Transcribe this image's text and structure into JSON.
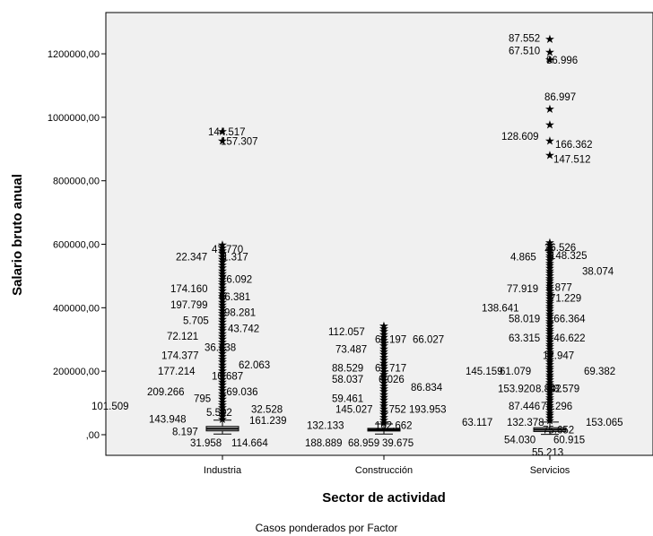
{
  "chart_data": {
    "type": "boxplot",
    "xlabel": "Sector de actividad",
    "ylabel": "Salario bruto anual",
    "footnote": "Casos ponderados por Factor",
    "y_ticks": [
      ",00",
      "200000,00",
      "400000,00",
      "600000,00",
      "800000,00",
      "1000000,00",
      "1200000,00"
    ],
    "y_tick_values": [
      0,
      200000,
      400000,
      600000,
      800000,
      1000000,
      1200000
    ],
    "ylim": [
      -65000,
      1330000
    ],
    "categories": [
      "Industria",
      "Construcción",
      "Servicios"
    ],
    "boxes": [
      {
        "q1": 12000,
        "median": 18500,
        "q3": 26000,
        "whisker_low": 2000,
        "whisker_high": 46000
      },
      {
        "q1": 12000,
        "median": 15500,
        "q3": 20000,
        "whisker_low": 2000,
        "whisker_high": 34000
      },
      {
        "q1": 10000,
        "median": 16000,
        "q3": 22000,
        "whisker_low": 1000,
        "whisker_high": 40000
      }
    ],
    "outlier_labels": [
      {
        "category": "Industria",
        "label": "144.517",
        "y": 955000
      },
      {
        "category": "Industria",
        "label": "157.307",
        "y": 925000
      },
      {
        "category": "Industria",
        "label": "47.770",
        "y": 585000
      },
      {
        "category": "Industria",
        "label": "22.347",
        "y": 560000
      },
      {
        "category": "Industria",
        "label": "1.317",
        "y": 560000
      },
      {
        "category": "Industria",
        "label": "76.092",
        "y": 490000
      },
      {
        "category": "Industria",
        "label": "174.160",
        "y": 460000
      },
      {
        "category": "Industria",
        "label": "66.381",
        "y": 435000
      },
      {
        "category": "Industria",
        "label": "197.799",
        "y": 410000
      },
      {
        "category": "Industria",
        "label": "98.281",
        "y": 385000
      },
      {
        "category": "Industria",
        "label": "5.705",
        "y": 360000
      },
      {
        "category": "Industria",
        "label": "43.742",
        "y": 335000
      },
      {
        "category": "Industria",
        "label": "72.121",
        "y": 310000
      },
      {
        "category": "Industria",
        "label": "36.638",
        "y": 275000
      },
      {
        "category": "Industria",
        "label": "174.377",
        "y": 250000
      },
      {
        "category": "Industria",
        "label": "62.063",
        "y": 220000
      },
      {
        "category": "Industria",
        "label": "177.214",
        "y": 200000
      },
      {
        "category": "Industria",
        "label": "10.687",
        "y": 185000
      },
      {
        "category": "Industria",
        "label": "209.266",
        "y": 135000
      },
      {
        "category": "Industria",
        "label": "169.036",
        "y": 135000
      },
      {
        "category": "Industria",
        "label": "795",
        "y": 115000
      },
      {
        "category": "Industria",
        "label": "101.509",
        "y": 90000
      },
      {
        "category": "Industria",
        "label": "32.528",
        "y": 80000
      },
      {
        "category": "Industria",
        "label": "5.592",
        "y": 70000
      },
      {
        "category": "Industria",
        "label": "143.948",
        "y": 50000
      },
      {
        "category": "Industria",
        "label": "161.239",
        "y": 45000
      },
      {
        "category": "Industria",
        "label": "8.197",
        "y": 10000
      },
      {
        "category": "Industria",
        "label": "31.958",
        "y": -25000
      },
      {
        "category": "Industria",
        "label": "114.664",
        "y": -25000
      },
      {
        "category": "Construcción",
        "label": "112.057",
        "y": 325000
      },
      {
        "category": "Construcción",
        "label": "60.197",
        "y": 300000
      },
      {
        "category": "Construcción",
        "label": "66.027",
        "y": 300000
      },
      {
        "category": "Construcción",
        "label": "73.487",
        "y": 270000
      },
      {
        "category": "Construcción",
        "label": "88.529",
        "y": 210000
      },
      {
        "category": "Construcción",
        "label": "67.717",
        "y": 210000
      },
      {
        "category": "Construcción",
        "label": "58.037",
        "y": 175000
      },
      {
        "category": "Construcción",
        "label": "6.026",
        "y": 175000
      },
      {
        "category": "Construcción",
        "label": "86.834",
        "y": 150000
      },
      {
        "category": "Construcción",
        "label": "59.461",
        "y": 115000
      },
      {
        "category": "Construcción",
        "label": "145.027",
        "y": 80000
      },
      {
        "category": "Construcción",
        "label": "3.752",
        "y": 80000
      },
      {
        "category": "Construcción",
        "label": "193.953",
        "y": 80000
      },
      {
        "category": "Construcción",
        "label": "132.133",
        "y": 30000
      },
      {
        "category": "Construcción",
        "label": "162.662",
        "y": 30000
      },
      {
        "category": "Construcción",
        "label": "188.889",
        "y": -25000
      },
      {
        "category": "Construcción",
        "label": "68.959",
        "y": -25000
      },
      {
        "category": "Construcción",
        "label": "39.675",
        "y": -25000
      },
      {
        "category": "Servicios",
        "label": "87.552",
        "y": 1250000
      },
      {
        "category": "Servicios",
        "label": "67.510",
        "y": 1210000
      },
      {
        "category": "Servicios",
        "label": "86.996",
        "y": 1180000
      },
      {
        "category": "Servicios",
        "label": "86.997",
        "y": 1065000
      },
      {
        "category": "Servicios",
        "label": "128.609",
        "y": 940000
      },
      {
        "category": "Servicios",
        "label": "166.362",
        "y": 915000
      },
      {
        "category": "Servicios",
        "label": "147.512",
        "y": 868000
      },
      {
        "category": "Servicios",
        "label": "26.526",
        "y": 590000
      },
      {
        "category": "Servicios",
        "label": "4.865",
        "y": 560000
      },
      {
        "category": "Servicios",
        "label": "148.325",
        "y": 565000
      },
      {
        "category": "Servicios",
        "label": "38.074",
        "y": 515000
      },
      {
        "category": "Servicios",
        "label": "77.919",
        "y": 460000
      },
      {
        "category": "Servicios",
        "label": "8.877",
        "y": 465000
      },
      {
        "category": "Servicios",
        "label": "71.229",
        "y": 430000
      },
      {
        "category": "Servicios",
        "label": "138.641",
        "y": 400000
      },
      {
        "category": "Servicios",
        "label": "58.019",
        "y": 365000
      },
      {
        "category": "Servicios",
        "label": "166.364",
        "y": 365000
      },
      {
        "category": "Servicios",
        "label": "63.315",
        "y": 305000
      },
      {
        "category": "Servicios",
        "label": "146.622",
        "y": 305000
      },
      {
        "category": "Servicios",
        "label": "12.947",
        "y": 250000
      },
      {
        "category": "Servicios",
        "label": "145.159",
        "y": 200000
      },
      {
        "category": "Servicios",
        "label": "61.079",
        "y": 200000
      },
      {
        "category": "Servicios",
        "label": "69.382",
        "y": 200000
      },
      {
        "category": "Servicios",
        "label": "153.920",
        "y": 145000
      },
      {
        "category": "Servicios",
        "label": "8.842",
        "y": 145000
      },
      {
        "category": "Servicios",
        "label": "88.579",
        "y": 145000
      },
      {
        "category": "Servicios",
        "label": "87.446",
        "y": 90000
      },
      {
        "category": "Servicios",
        "label": "78.296",
        "y": 90000
      },
      {
        "category": "Servicios",
        "label": "63.117",
        "y": 40000
      },
      {
        "category": "Servicios",
        "label": "132.378",
        "y": 40000
      },
      {
        "category": "Servicios",
        "label": "153.065",
        "y": 40000
      },
      {
        "category": "Servicios",
        "label": "75.652",
        "y": 15000
      },
      {
        "category": "Servicios",
        "label": "54.030",
        "y": -15000
      },
      {
        "category": "Servicios",
        "label": "60.915",
        "y": -15000
      },
      {
        "category": "Servicios",
        "label": "55.213",
        "y": -55000
      }
    ]
  },
  "colors": {
    "plot_bg": "#f0f0f0",
    "box_fill": "#c0c0c0",
    "axis": "#000000"
  }
}
